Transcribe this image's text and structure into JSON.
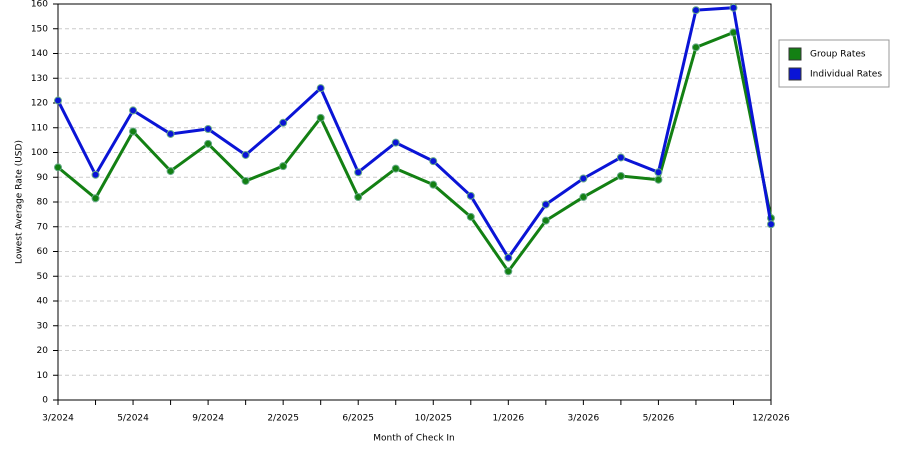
{
  "chart_data": {
    "type": "line",
    "x_label": "Month of Check In",
    "y_label": "Lowest Average Rate (USD)",
    "categories": [
      "3/2024",
      null,
      "5/2024",
      null,
      "9/2024",
      null,
      "2/2025",
      null,
      "6/2025",
      null,
      "10/2025",
      null,
      "1/2026",
      null,
      "3/2026",
      null,
      "5/2026",
      null,
      null,
      "12/2026"
    ],
    "series": [
      {
        "name": "Group Rates",
        "color": "#138013",
        "values": [
          94,
          81.5,
          108.5,
          92.5,
          103.5,
          88.5,
          94.5,
          114,
          82,
          93.5,
          87,
          74,
          52,
          72.5,
          82,
          90.5,
          89,
          142.5,
          148.5,
          73.5
        ]
      },
      {
        "name": "Individual Rates",
        "color": "#0a14d6",
        "values": [
          121,
          91,
          117,
          107.5,
          109.5,
          99,
          112,
          126,
          92,
          104,
          96.5,
          82.5,
          57.5,
          79,
          89.5,
          98,
          92,
          157.5,
          158.5,
          71
        ]
      }
    ],
    "ylim": [
      0,
      160
    ],
    "yticks": [
      0,
      10,
      20,
      30,
      40,
      50,
      60,
      70,
      80,
      90,
      100,
      110,
      120,
      130,
      140,
      150,
      160
    ],
    "grid": true,
    "legend": "right"
  }
}
